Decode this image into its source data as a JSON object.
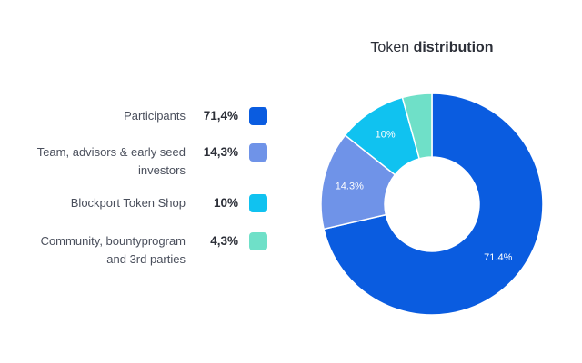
{
  "chart_data": {
    "type": "pie",
    "title_light": "Token",
    "title_bold": "distribution",
    "categories": [
      "Participants",
      "Team, advisors & early seed investors",
      "Blockport Token Shop",
      "Community, bountyprogram and 3rd parties"
    ],
    "legend": [
      {
        "line1": "Participants",
        "line2": "",
        "value_text": "71,4%",
        "color": "#0a5ce0"
      },
      {
        "line1": "Team, advisors & early seed",
        "line2": "investors",
        "value_text": "14,3%",
        "color": "#6f93e8"
      },
      {
        "line1": "Blockport Token Shop",
        "line2": "",
        "value_text": "10%",
        "color": "#10c2f0"
      },
      {
        "line1": "Community, bountyprogram",
        "line2": "and 3rd parties",
        "value_text": "4,3%",
        "color": "#6fe0c8"
      }
    ],
    "values": [
      71.4,
      14.3,
      10,
      4.3
    ],
    "slice_labels": [
      "71.4%",
      "14.3%",
      "10%",
      ""
    ],
    "colors": [
      "#0a5ce0",
      "#6f93e8",
      "#10c2f0",
      "#6fe0c8"
    ],
    "legend_position": "left"
  }
}
